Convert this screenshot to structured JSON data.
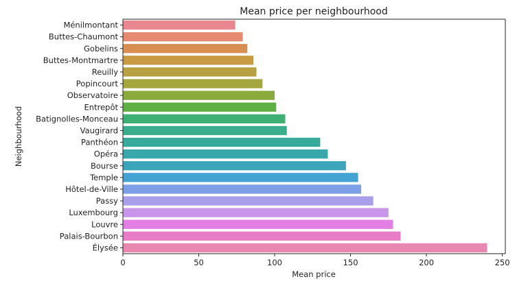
{
  "chart_data": {
    "type": "bar",
    "orientation": "horizontal",
    "title": "Mean price per neighbourhood",
    "xlabel": "Mean price",
    "ylabel": "Neighbourhood",
    "xlim": [
      0,
      252
    ],
    "xticks": [
      0,
      50,
      100,
      150,
      200,
      250
    ],
    "grid": false,
    "categories": [
      "Ménilmontant",
      "Buttes-Chaumont",
      "Gobelins",
      "Buttes-Montmartre",
      "Reuilly",
      "Popincourt",
      "Observatoire",
      "Entrepôt",
      "Batignolles-Monceau",
      "Vaugirard",
      "Panthéon",
      "Opéra",
      "Bourse",
      "Temple",
      "Hôtel-de-Ville",
      "Passy",
      "Luxembourg",
      "Louvre",
      "Palais-Bourbon",
      "Élysée"
    ],
    "values": [
      74,
      79,
      82,
      86,
      88,
      92,
      100,
      101,
      107,
      108,
      130,
      135,
      147,
      155,
      157,
      165,
      175,
      178,
      183,
      240
    ],
    "colors": [
      "#e8878f",
      "#e68a72",
      "#d98f54",
      "#c89a44",
      "#b8a142",
      "#a6a63e",
      "#8aab3c",
      "#5fb044",
      "#3fb073",
      "#3aae8c",
      "#38aa9b",
      "#39a8aa",
      "#3ba6ba",
      "#45a3d4",
      "#7d9fe6",
      "#a89ee9",
      "#c995ea",
      "#e37fe4",
      "#e97cc7",
      "#e887af"
    ]
  }
}
